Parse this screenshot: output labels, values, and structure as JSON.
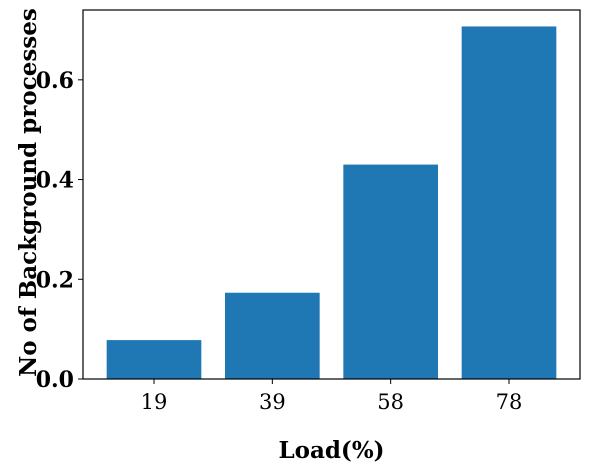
{
  "chart_data": {
    "type": "bar",
    "title": "",
    "xlabel": "Load(%)",
    "ylabel": "No of Background processes",
    "categories": [
      "19",
      "39",
      "58",
      "78"
    ],
    "values": [
      0.078,
      0.173,
      0.43,
      0.707
    ],
    "ylim": [
      0,
      0.74
    ],
    "yticks": [
      0.0,
      0.2,
      0.4,
      0.6
    ],
    "ytick_labels": [
      "0.0",
      "0.2",
      "0.4",
      "0.6"
    ],
    "grid": false,
    "bar_color": "#1f77b4"
  }
}
